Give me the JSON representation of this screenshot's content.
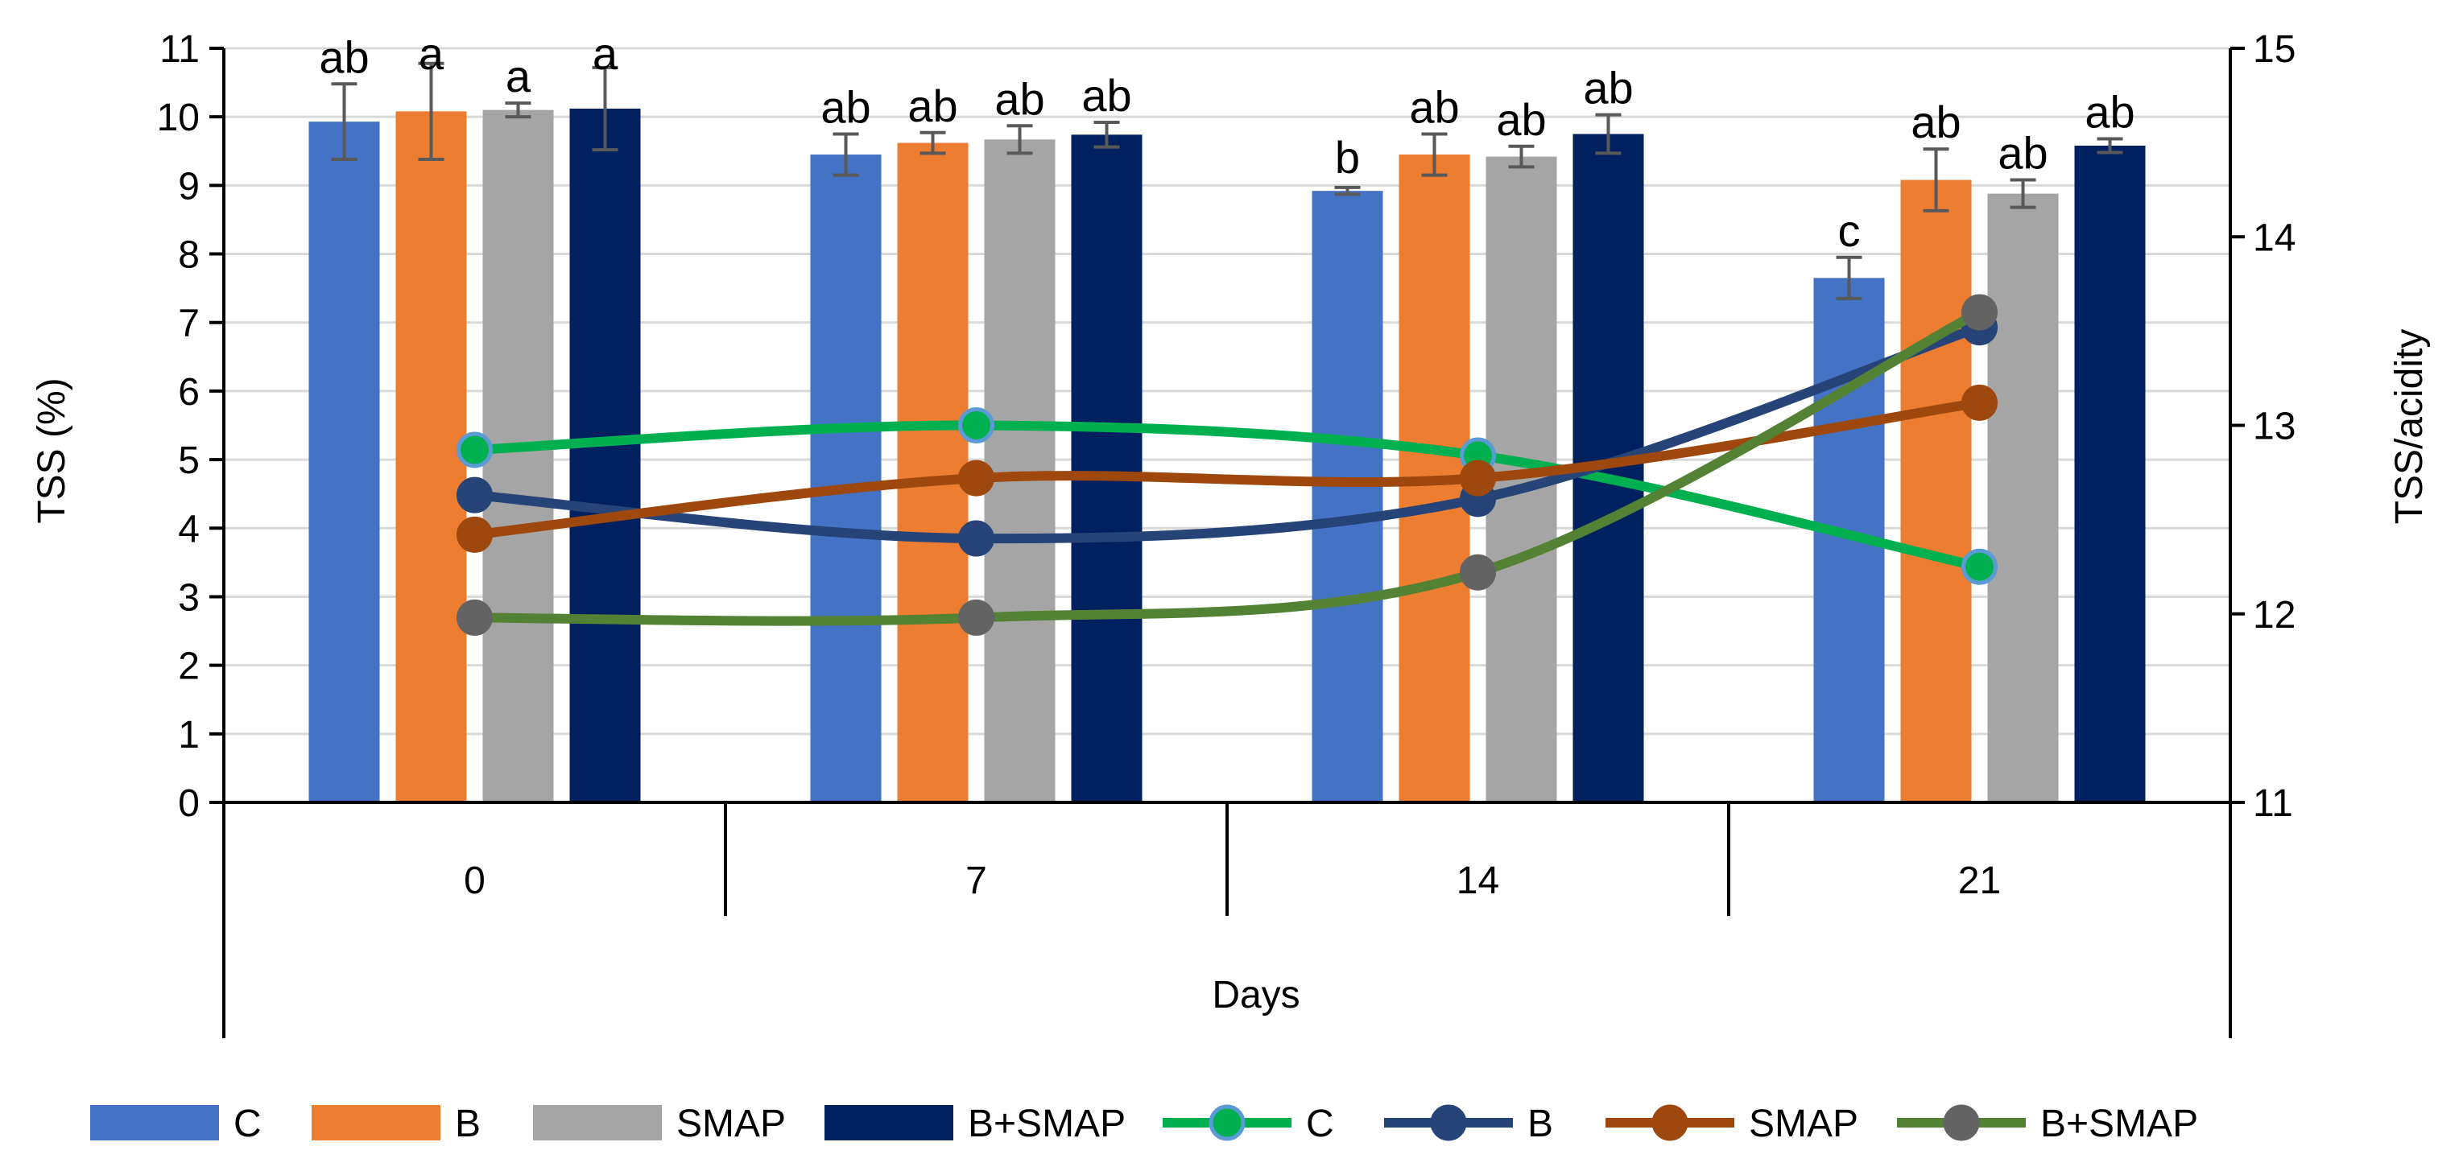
{
  "chart_data": {
    "type": "bar+line",
    "categories": [
      "0",
      "7",
      "14",
      "21"
    ],
    "xlabel": "Days",
    "ylabel_left": "TSS (%)",
    "ylabel_right": "TSS/acidity",
    "ylim_left": [
      0,
      11
    ],
    "ylim_right": [
      11,
      15
    ],
    "yticks_left": [
      "0",
      "1",
      "2",
      "3",
      "4",
      "5",
      "6",
      "7",
      "8",
      "9",
      "10",
      "11"
    ],
    "yticks_right": [
      "11",
      "12",
      "13",
      "14",
      "15"
    ],
    "grid": true,
    "legend_position": "bottom",
    "bar_series": [
      {
        "name": "C",
        "color": "#4472C4",
        "values": [
          9.93,
          9.45,
          8.92,
          7.65
        ],
        "errors": [
          0.55,
          0.3,
          0.05,
          0.3
        ],
        "letters": [
          "ab",
          "ab",
          "b",
          "c"
        ]
      },
      {
        "name": "B",
        "color": "#ED7D31",
        "values": [
          10.08,
          9.62,
          9.45,
          9.08
        ],
        "errors": [
          0.7,
          0.15,
          0.3,
          0.45
        ],
        "letters": [
          "a",
          "ab",
          "ab",
          "ab"
        ]
      },
      {
        "name": "SMAP",
        "color": "#A5A5A5",
        "values": [
          10.1,
          9.67,
          9.42,
          8.88
        ],
        "errors": [
          0.1,
          0.2,
          0.15,
          0.2
        ],
        "letters": [
          "a",
          "ab",
          "ab",
          "ab"
        ]
      },
      {
        "name": "B+SMAP",
        "color": "#002060",
        "values": [
          10.12,
          9.74,
          9.75,
          9.58
        ],
        "errors": [
          0.6,
          0.18,
          0.28,
          0.1
        ],
        "letters": [
          "a",
          "ab",
          "ab",
          "ab"
        ]
      }
    ],
    "line_series": [
      {
        "name": "C",
        "color": "#00B050",
        "marker_edge": "#5B9BD5",
        "values": [
          12.87,
          13.0,
          12.84,
          12.25
        ]
      },
      {
        "name": "B",
        "color": "#264478",
        "marker_edge": "#264478",
        "values": [
          12.63,
          12.4,
          12.61,
          13.52
        ]
      },
      {
        "name": "SMAP",
        "color": "#9E480E",
        "marker_edge": "#9E480E",
        "values": [
          12.42,
          12.72,
          12.72,
          13.12
        ]
      },
      {
        "name": "B+SMAP",
        "color": "#548235",
        "marker_edge": "#636363",
        "marker_fill": "#636363",
        "values": [
          11.98,
          11.98,
          12.22,
          13.6
        ]
      }
    ]
  }
}
